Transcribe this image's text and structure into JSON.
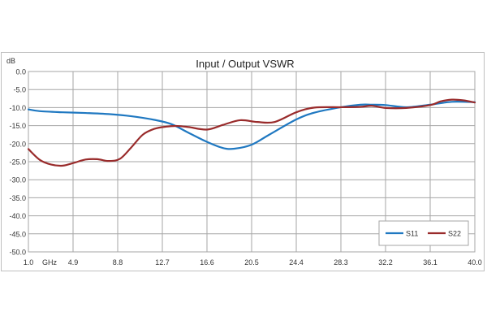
{
  "chart_data": {
    "type": "line",
    "title": "Input / Output VSWR",
    "ylabel": "dB",
    "xlabel": "",
    "x_unit_label": "GHz",
    "xlim": [
      1.0,
      40.0
    ],
    "ylim": [
      -50.0,
      0.0
    ],
    "y_ticks": [
      0.0,
      -5.0,
      -10.0,
      -15.0,
      -20.0,
      -25.0,
      -30.0,
      -35.0,
      -40.0,
      -45.0,
      -50.0
    ],
    "y_tick_labels": [
      "0.0",
      "-5.0",
      "-10.0",
      "-15.0",
      "-20.0",
      "-25.0",
      "-30.0",
      "-35.0",
      "-40.0",
      "-45.0",
      "-50.0"
    ],
    "x_ticks": [
      1.0,
      4.9,
      8.8,
      12.7,
      16.6,
      20.5,
      24.4,
      28.3,
      32.2,
      36.1,
      40.0
    ],
    "x_tick_labels": [
      "1.0",
      "4.9",
      "8.8",
      "12.7",
      "16.6",
      "20.5",
      "24.4",
      "28.3",
      "32.2",
      "36.1",
      "40.0"
    ],
    "grid": true,
    "legend_position": "bottom-right",
    "series": [
      {
        "name": "S11",
        "color": "#1f78c1",
        "x": [
          1.0,
          2.0,
          4.0,
          6.0,
          8.0,
          10.0,
          12.0,
          13.5,
          15.0,
          16.6,
          18.0,
          19.0,
          20.5,
          22.0,
          24.4,
          26.0,
          28.3,
          30.0,
          31.0,
          32.2,
          34.0,
          36.1,
          38.0,
          40.0
        ],
        "y": [
          -10.5,
          -11.0,
          -11.3,
          -11.5,
          -11.8,
          -12.4,
          -13.4,
          -14.6,
          -17.0,
          -19.5,
          -21.2,
          -21.4,
          -20.3,
          -17.6,
          -13.3,
          -11.4,
          -9.9,
          -9.2,
          -9.2,
          -9.3,
          -9.9,
          -9.2,
          -8.4,
          -8.5
        ]
      },
      {
        "name": "S22",
        "color": "#992b2b",
        "x": [
          1.0,
          2.0,
          3.0,
          4.0,
          5.0,
          6.0,
          7.0,
          8.0,
          9.0,
          10.0,
          11.0,
          12.0,
          13.0,
          14.0,
          15.0,
          16.6,
          18.0,
          19.5,
          21.0,
          22.5,
          24.4,
          26.0,
          28.3,
          30.0,
          31.0,
          32.2,
          34.0,
          36.1,
          37.0,
          38.0,
          39.0,
          40.0
        ],
        "y": [
          -21.5,
          -24.5,
          -25.8,
          -26.1,
          -25.3,
          -24.4,
          -24.3,
          -24.8,
          -24.2,
          -21.0,
          -17.5,
          -15.9,
          -15.3,
          -15.1,
          -15.4,
          -16.1,
          -14.8,
          -13.5,
          -14.0,
          -14.0,
          -11.3,
          -10.0,
          -9.9,
          -9.8,
          -9.5,
          -10.1,
          -10.1,
          -9.3,
          -8.3,
          -7.8,
          -8.0,
          -8.6
        ]
      }
    ]
  }
}
